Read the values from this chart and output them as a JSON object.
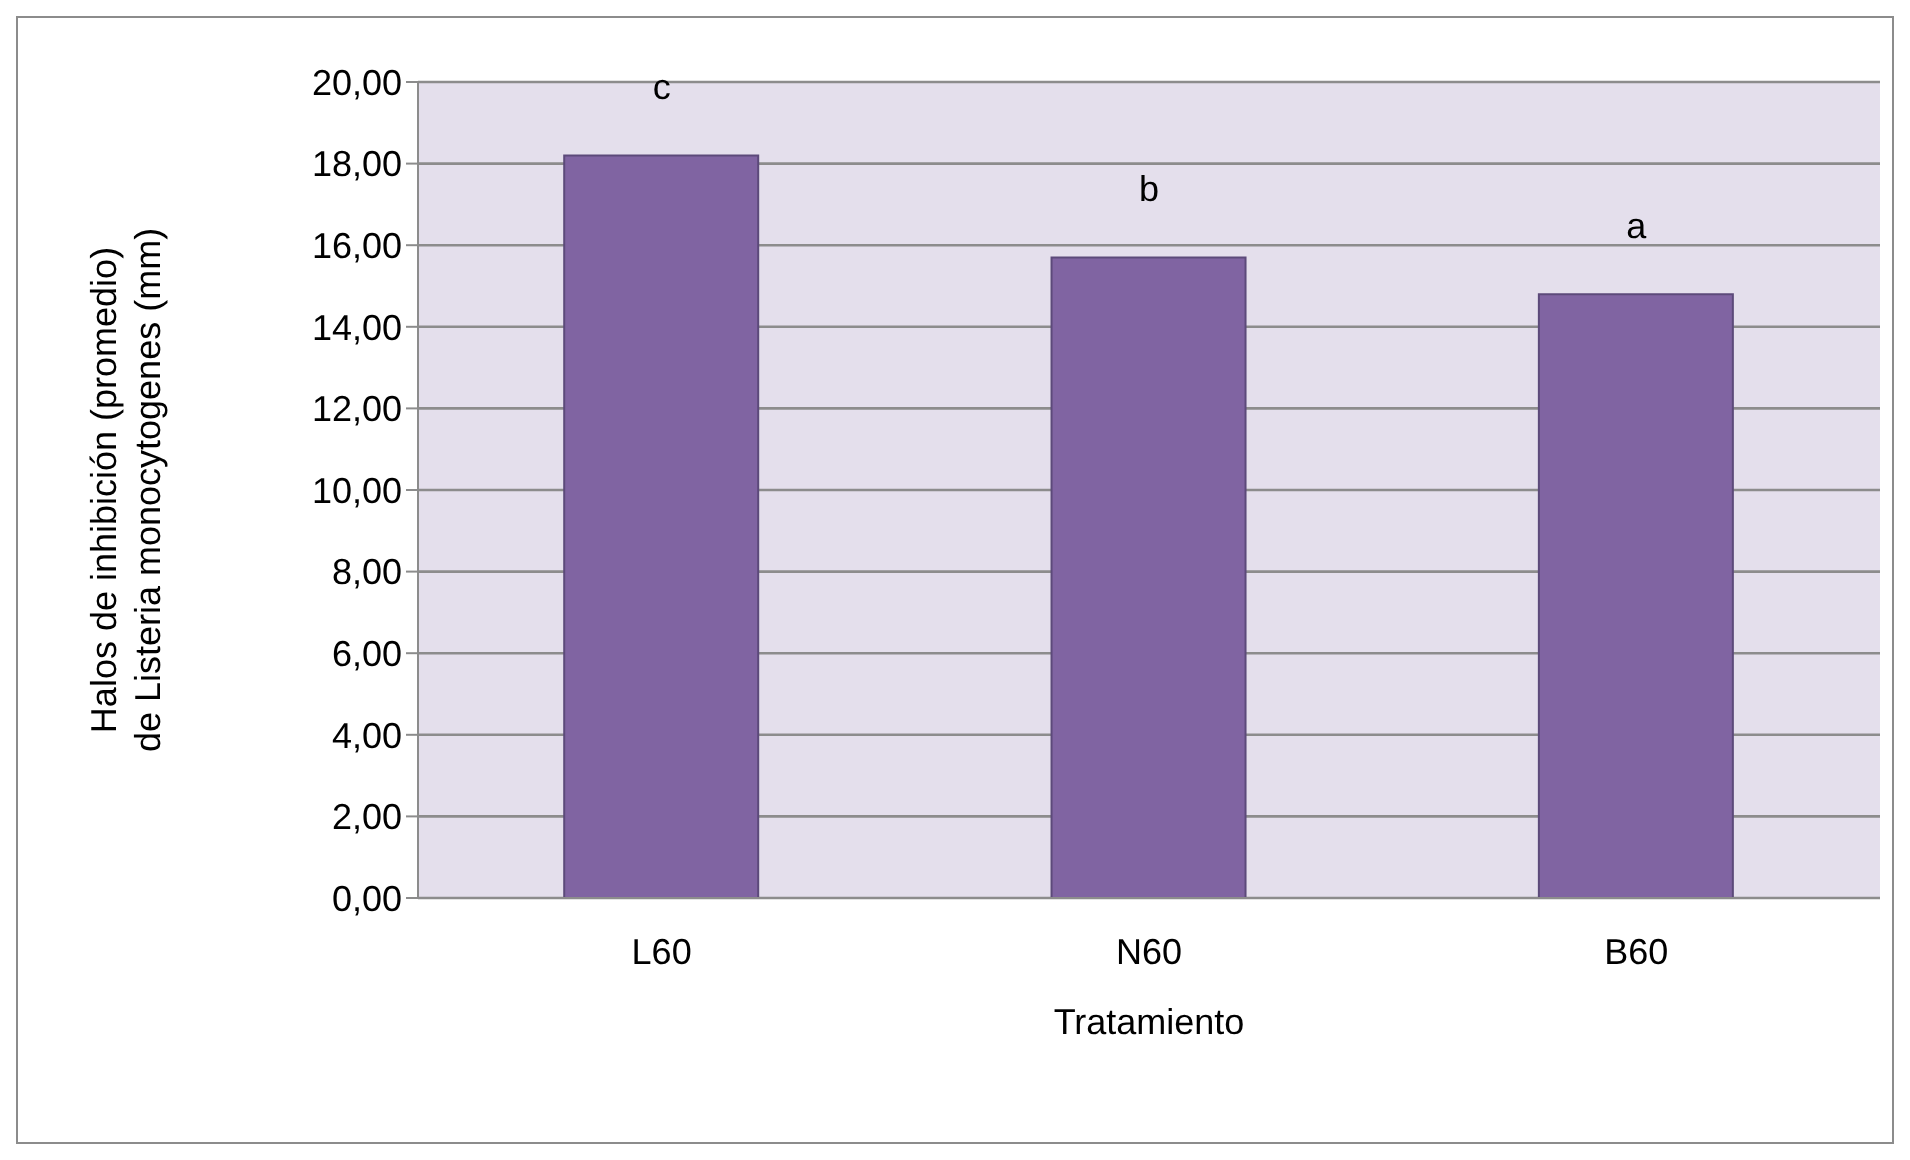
{
  "chart_data": {
    "type": "bar",
    "xlabel": "Tratamiento",
    "ylabel": "Halos de inhibición (promedio) de Listeria monocytogenes (mm)",
    "categories": [
      "L60",
      "N60",
      "B60"
    ],
    "values": [
      18.2,
      15.7,
      14.8
    ],
    "color": "#8064a2",
    "ylim": [
      0,
      20
    ],
    "yticks": [
      {
        "value": 0,
        "label": "0,00"
      },
      {
        "value": 2,
        "label": "2,00"
      },
      {
        "value": 4,
        "label": "4,00"
      },
      {
        "value": 6,
        "label": "6,00"
      },
      {
        "value": 8,
        "label": "8,00"
      },
      {
        "value": 10,
        "label": "10,00"
      },
      {
        "value": 12,
        "label": "12,00"
      },
      {
        "value": 14,
        "label": "14,00"
      },
      {
        "value": 16,
        "label": "16,00"
      },
      {
        "value": 18,
        "label": "18,00"
      },
      {
        "value": 20,
        "label": "20,00"
      }
    ],
    "grid": "y",
    "annotations": [
      {
        "text": "c",
        "x": "L60",
        "y": 18.2
      },
      {
        "text": "b",
        "x": "N60",
        "y": 15.7
      },
      {
        "text": "a",
        "x": "B60",
        "y": 14.8
      }
    ]
  }
}
